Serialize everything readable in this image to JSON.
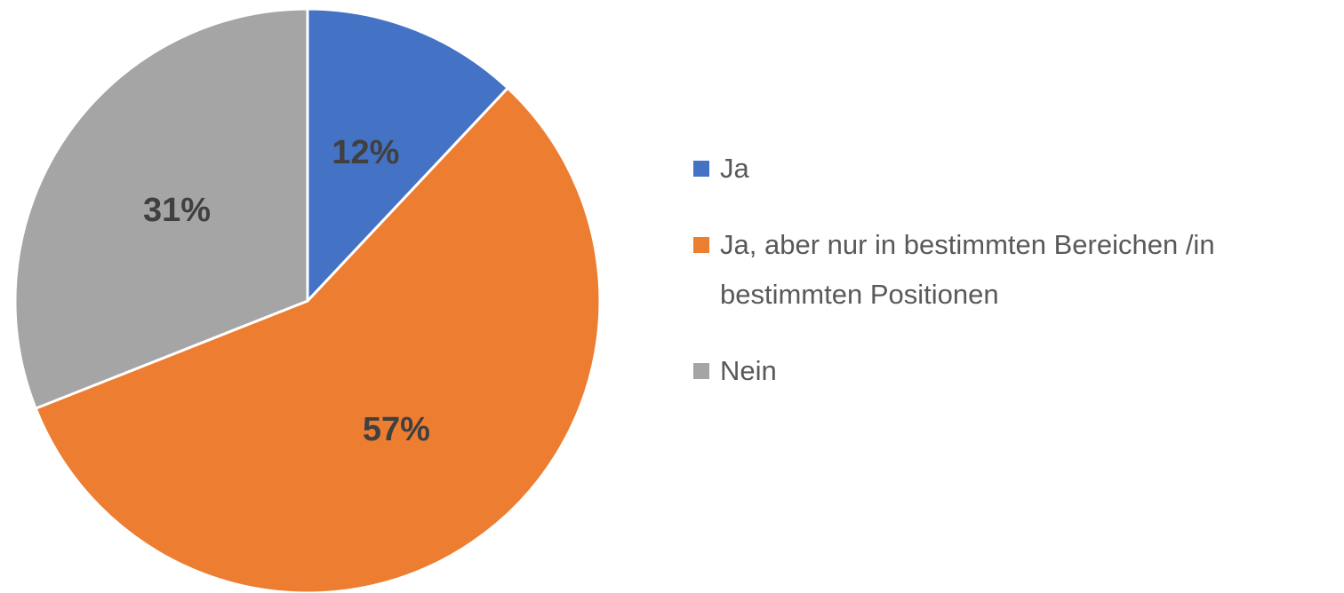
{
  "chart_data": {
    "type": "pie",
    "categories": [
      "Ja",
      "Ja, aber nur in bestimmten Bereichen /in bestimmten Positionen",
      "Nein"
    ],
    "values": [
      12,
      57,
      31
    ],
    "value_labels": [
      "12%",
      "57%",
      "31%"
    ],
    "colors": [
      "#4472c4",
      "#ed7d31",
      "#a5a5a5"
    ],
    "legend": "right"
  }
}
